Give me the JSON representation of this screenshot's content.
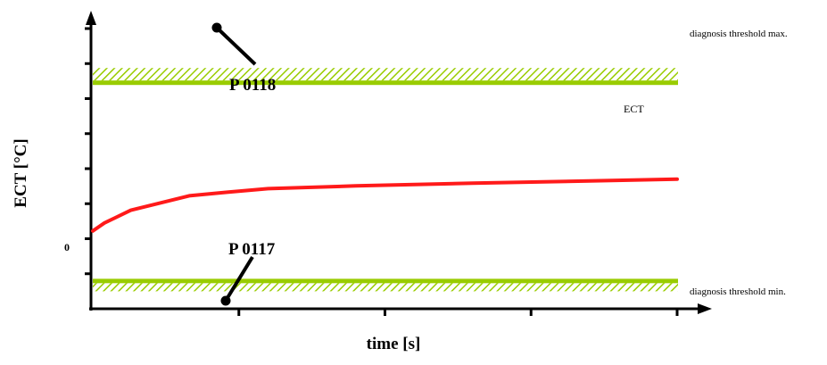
{
  "chart_data": {
    "type": "line",
    "xlabel": "time [s]",
    "ylabel": "ECT [°C]",
    "x_ticks": 4,
    "y_ticks": 8,
    "y_tick_labels": [
      {
        "value": 0,
        "label": "0"
      }
    ],
    "xlim": [
      0,
      10
    ],
    "ylim": [
      -3,
      10.5
    ],
    "series": [
      {
        "name": "ECT",
        "color": "#ff1a1a",
        "x": [
          0,
          0.2,
          0.65,
          1.65,
          2.3,
          3.0,
          4.5,
          6.5,
          8.5,
          10
        ],
        "y": [
          0.8,
          1.25,
          1.95,
          2.75,
          2.95,
          3.15,
          3.3,
          3.45,
          3.58,
          3.68
        ]
      }
    ],
    "thresholds": [
      {
        "name": "max",
        "label": "diagnosis threshold max.",
        "y": 9.0,
        "color": "#99cc00"
      },
      {
        "name": "min",
        "label": "diagnosis threshold min.",
        "y": -2.0,
        "color": "#99cc00"
      }
    ],
    "callouts": [
      {
        "label": "P 0118",
        "threshold": "max"
      },
      {
        "label": "P 0117",
        "threshold": "min"
      }
    ]
  }
}
